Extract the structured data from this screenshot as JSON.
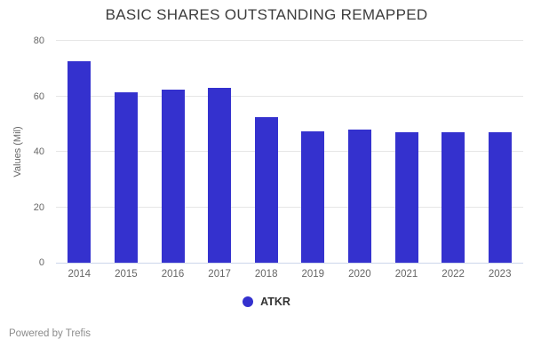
{
  "title": "BASIC SHARES OUTSTANDING REMAPPED",
  "legend": {
    "items": [
      {
        "label": "ATKR",
        "color": "#3431CE"
      }
    ]
  },
  "footer": {
    "text": "Powered by Trefis"
  },
  "colors": {
    "bar": "#3431CE",
    "gridline": "#e6e6e6",
    "axis_line": "#ccd6eb",
    "tick_label": "#666666",
    "title_text": "#3d3d3d",
    "legend_text": "#333333",
    "footer_text": "#8c8c8c",
    "background": "#ffffff"
  },
  "chart_data": {
    "type": "bar",
    "title": "BASIC SHARES OUTSTANDING REMAPPED",
    "categories": [
      "2014",
      "2015",
      "2016",
      "2017",
      "2018",
      "2019",
      "2020",
      "2021",
      "2022",
      "2023"
    ],
    "series": [
      {
        "name": "ATKR",
        "color": "#3431CE",
        "values": [
          72.7,
          61.5,
          62.3,
          63.2,
          52.5,
          47.5,
          48.0,
          47.2,
          47.2,
          47.0
        ]
      }
    ],
    "xlabel": "",
    "ylabel": "Values (Mil)",
    "ylim": [
      0,
      80
    ],
    "yticks": [
      0,
      20,
      40,
      60,
      80
    ],
    "grid": true,
    "legend_position": "bottom"
  }
}
